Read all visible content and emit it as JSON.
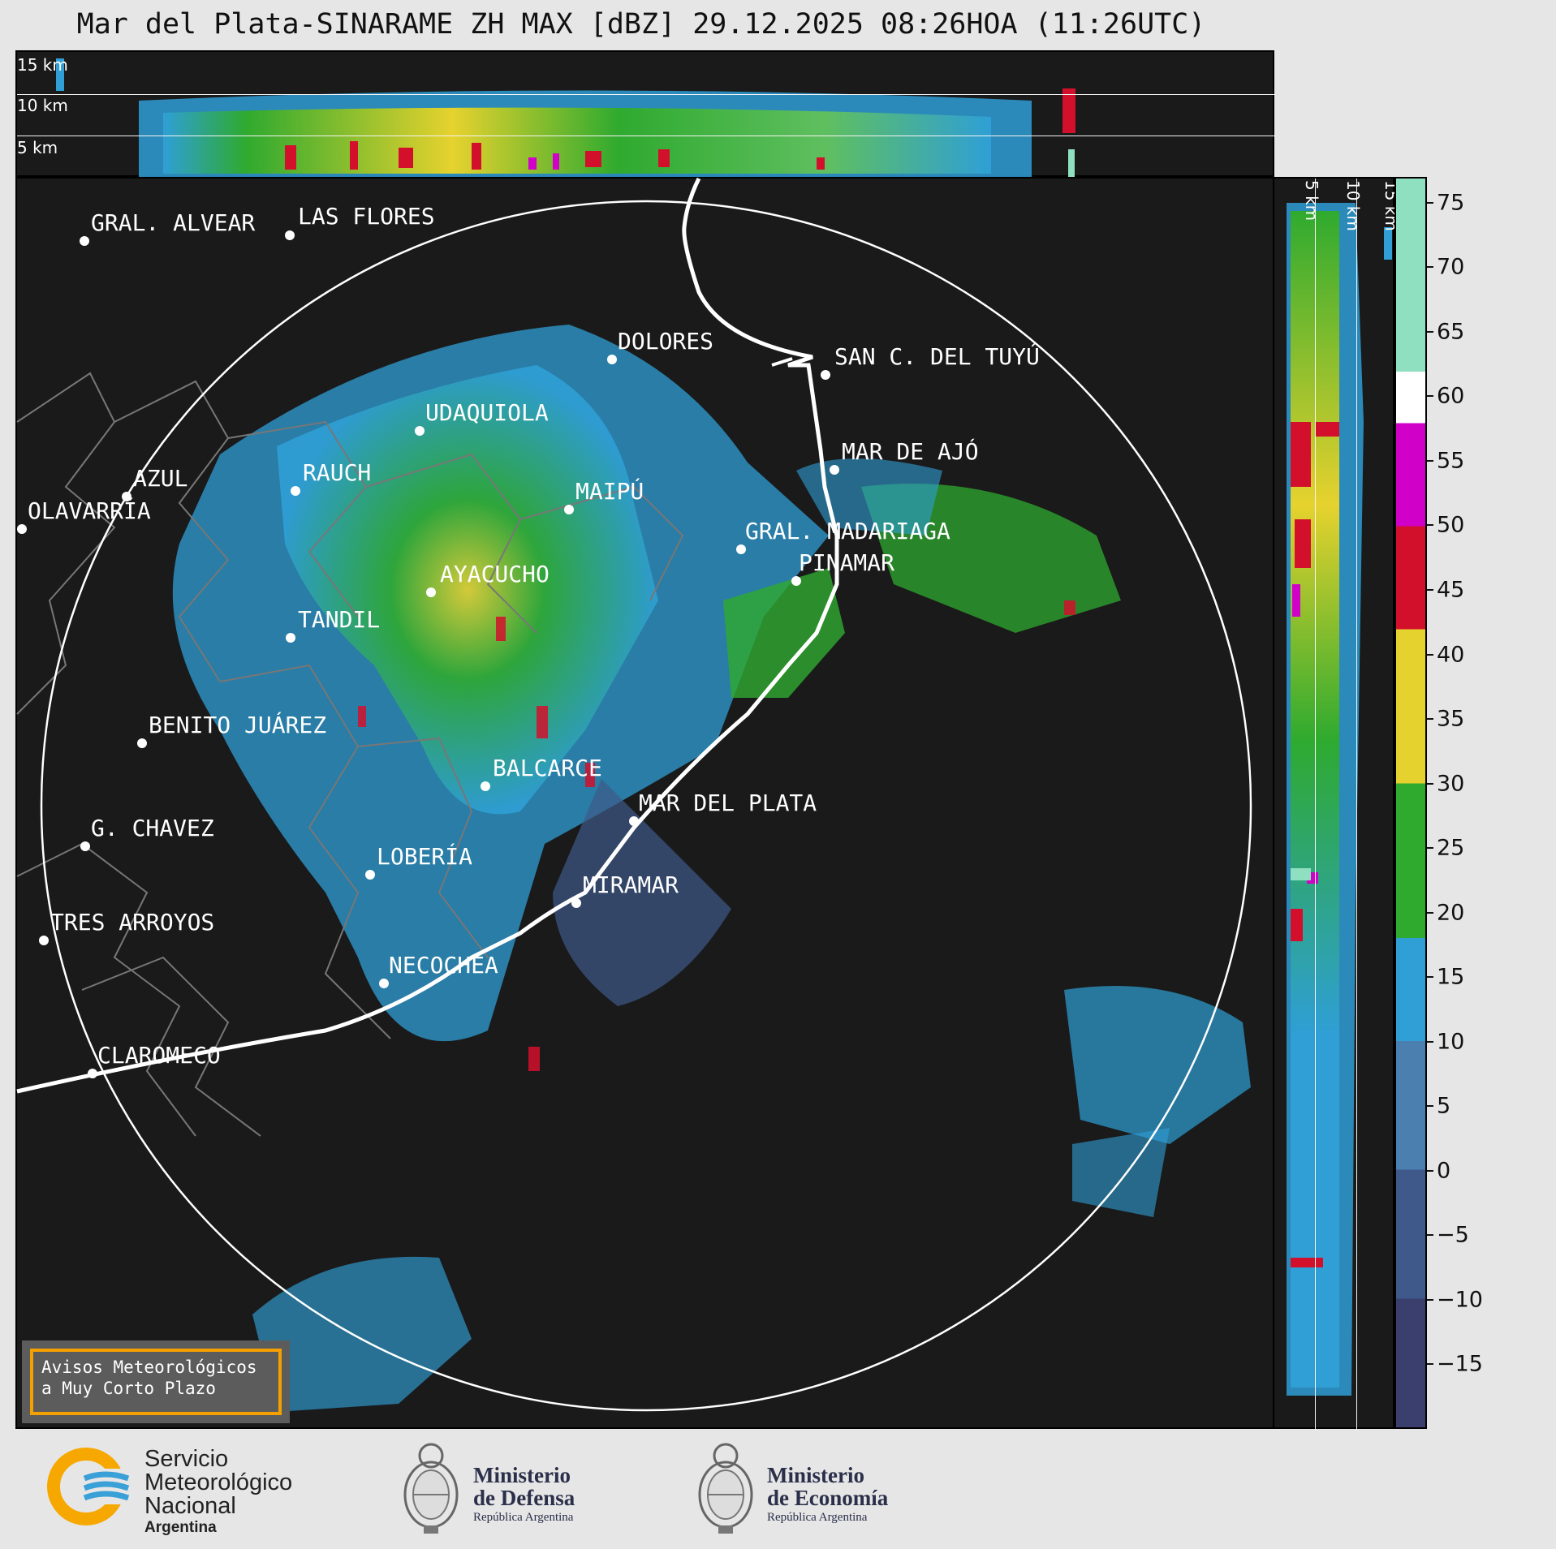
{
  "title": "Mar del Plata-SINARAME ZH MAX [dBZ] 29.12.2025 08:26HOA (11:26UTC)",
  "top_panel": {
    "altitude_labels": [
      "15 km",
      "10 km",
      "5 km"
    ]
  },
  "side_panel": {
    "altitude_labels": [
      "5 km",
      "10 km",
      "15 km"
    ]
  },
  "colorbar": {
    "unit": "dBZ",
    "tick_labels": [
      "75",
      "70",
      "65",
      "60",
      "55",
      "50",
      "45",
      "40",
      "35",
      "30",
      "25",
      "20",
      "15",
      "10",
      "5",
      "0",
      "−5",
      "−10",
      "−15"
    ],
    "min": -20,
    "max": 77,
    "bands": [
      {
        "from": -20,
        "to": -10,
        "color": "#3b3f6e"
      },
      {
        "from": -10,
        "to": 0,
        "color": "#3f5a8a"
      },
      {
        "from": 0,
        "to": 10,
        "color": "#4a7fb0"
      },
      {
        "from": 10,
        "to": 18,
        "color": "#2f9fd6"
      },
      {
        "from": 18,
        "to": 30,
        "color": "#2faa2f"
      },
      {
        "from": 30,
        "to": 42,
        "color": "#e6d22e"
      },
      {
        "from": 42,
        "to": 50,
        "color": "#d2102c"
      },
      {
        "from": 50,
        "to": 58,
        "color": "#d000c8"
      },
      {
        "from": 58,
        "to": 62,
        "color": "#ffffff"
      },
      {
        "from": 62,
        "to": 77,
        "color": "#8fe0c0"
      }
    ]
  },
  "places": [
    {
      "name": "GRAL. ALVEAR"
    },
    {
      "name": "LAS FLORES"
    },
    {
      "name": "DOLORES"
    },
    {
      "name": "SAN C. DEL TUYÚ"
    },
    {
      "name": "UDAQUIOLA"
    },
    {
      "name": "MAR DE AJÓ"
    },
    {
      "name": "AZUL"
    },
    {
      "name": "RAUCH"
    },
    {
      "name": "MAIPÚ"
    },
    {
      "name": "OLAVARRÍA"
    },
    {
      "name": "GRAL. MADARIAGA"
    },
    {
      "name": "PINAMAR"
    },
    {
      "name": "AYACUCHO"
    },
    {
      "name": "TANDIL"
    },
    {
      "name": "BENITO JUÁREZ"
    },
    {
      "name": "BALCARCE"
    },
    {
      "name": "MAR DEL PLATA"
    },
    {
      "name": "G. CHAVEZ"
    },
    {
      "name": "LOBERÍA"
    },
    {
      "name": "MIRAMAR"
    },
    {
      "name": "TRES ARROYOS"
    },
    {
      "name": "NECOCHEA"
    },
    {
      "name": "CLAROMECO"
    }
  ],
  "notice": {
    "line1": "Avisos Meteorológicos",
    "line2": "a Muy Corto Plazo"
  },
  "logos": {
    "smn": {
      "line1": "Servicio",
      "line2": "Meteorológico",
      "line3": "Nacional",
      "line4": "Argentina"
    },
    "defensa": {
      "line1": "Ministerio",
      "line2": "de Defensa",
      "line3": "República Argentina"
    },
    "economia": {
      "line1": "Ministerio",
      "line2": "de Economía",
      "line3": "República Argentina"
    }
  }
}
